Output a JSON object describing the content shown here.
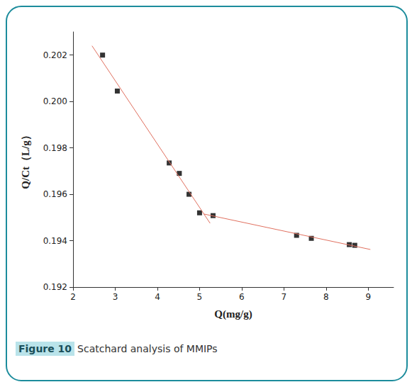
{
  "figure": {
    "label": "Figure 10",
    "caption": "Scatchard analysis of MMIPs"
  },
  "chart_data": {
    "type": "scatter",
    "x_label": "Q(mg/g)",
    "y_label": "Q/Ct（L/g）",
    "xlim": [
      2,
      9.6
    ],
    "xticks": [
      2,
      3,
      4,
      5,
      6,
      7,
      8,
      9
    ],
    "ylim": [
      0.192,
      0.203
    ],
    "yticks": [
      0.192,
      0.194,
      0.196,
      0.198,
      0.2,
      0.202
    ],
    "grid": false,
    "series": [
      {
        "type": "scatter",
        "marker": "square",
        "color": "#000000",
        "x": [
          2.7,
          3.05,
          4.28,
          4.52,
          4.75,
          5.0,
          5.32,
          7.3,
          7.65,
          8.55,
          8.68
        ],
        "values": [
          0.202,
          0.20045,
          0.19735,
          0.1969,
          0.196,
          0.1952,
          0.19508,
          0.19423,
          0.1941,
          0.19383,
          0.1938
        ]
      },
      {
        "type": "line",
        "color": "#e0705f",
        "line_style": "solid",
        "x": [
          2.45,
          5.25
        ],
        "values": [
          0.2024,
          0.19475
        ]
      },
      {
        "type": "line",
        "color": "#e0705f",
        "line_style": "solid",
        "x": [
          5.1,
          9.05
        ],
        "values": [
          0.19515,
          0.19362
        ]
      }
    ]
  }
}
